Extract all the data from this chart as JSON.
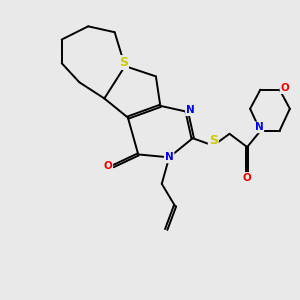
{
  "background_color": "#e9e9e9",
  "atom_colors": {
    "C": "#000000",
    "N": "#0000ee",
    "O": "#ee0000",
    "S": "#cccc00"
  },
  "bond_color": "#000000",
  "bond_width": 1.4,
  "font_size_atom": 7.5,
  "figsize": [
    3.0,
    3.0
  ],
  "dpi": 100,
  "xlim": [
    0,
    10
  ],
  "ylim": [
    0,
    10
  ]
}
